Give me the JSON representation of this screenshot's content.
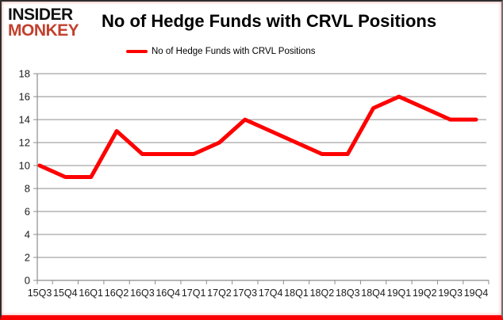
{
  "logo": {
    "line1": "INSIDER",
    "line2": "MONKEY",
    "line1_color": "#121212",
    "line2_color": "#c2402d"
  },
  "header": {
    "title": "No of Hedge Funds with CRVL Positions"
  },
  "legend": {
    "label": "No of Hedge Funds with CRVL Positions",
    "color": "#ff0000"
  },
  "chart_data": {
    "type": "line",
    "title": "No of Hedge Funds with CRVL Positions",
    "categories": [
      "15Q3",
      "15Q4",
      "16Q1",
      "16Q2",
      "16Q3",
      "16Q4",
      "17Q1",
      "17Q2",
      "17Q3",
      "17Q4",
      "18Q1",
      "18Q2",
      "18Q3",
      "18Q4",
      "19Q1",
      "19Q2",
      "19Q3",
      "19Q4"
    ],
    "series": [
      {
        "name": "No of Hedge Funds with CRVL Positions",
        "color": "#ff0000",
        "values": [
          10,
          9,
          9,
          13,
          11,
          11,
          11,
          12,
          14,
          13,
          12,
          11,
          11,
          15,
          16,
          15,
          14,
          14
        ]
      }
    ],
    "xlabel": "",
    "ylabel": "",
    "ylim": [
      0,
      18
    ],
    "ytick_step": 2,
    "grid": true,
    "legend_position": "top",
    "colors": {
      "gridline": "#8c8c8c",
      "axis": "#8c8c8c",
      "tick_label": "#1a1a1a"
    }
  }
}
